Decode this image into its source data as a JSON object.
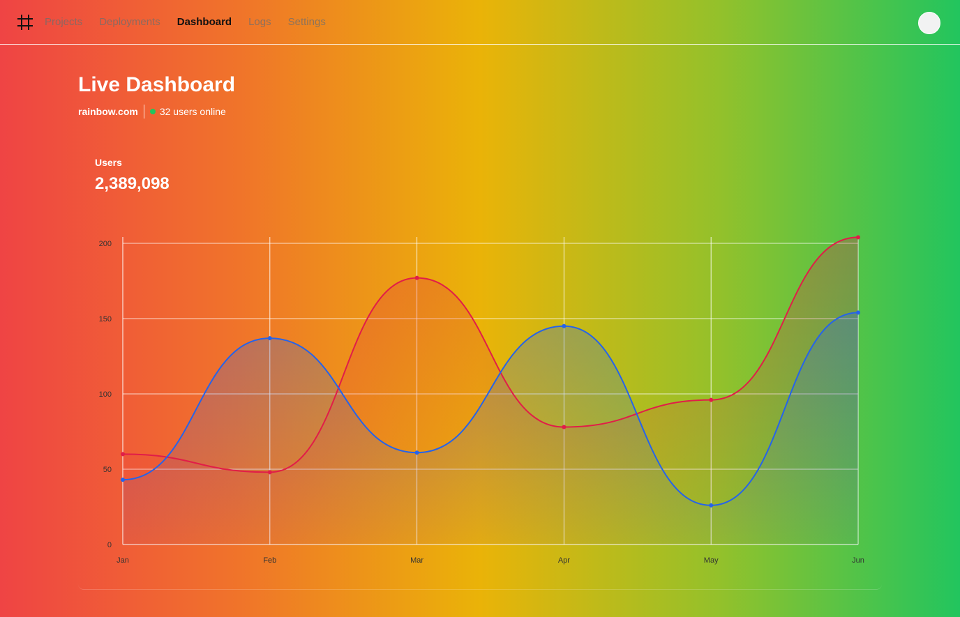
{
  "nav": {
    "items": [
      "Projects",
      "Deployments",
      "Dashboard",
      "Logs",
      "Settings"
    ],
    "active": "Dashboard"
  },
  "header": {
    "title": "Live Dashboard",
    "domain": "rainbow.com",
    "online": "32 users online"
  },
  "stat": {
    "label": "Users",
    "value": "2,389,098"
  },
  "colors": {
    "accent_online": "#22c55e",
    "series_red": "#e11d48",
    "series_blue": "#2563eb"
  },
  "icons": [
    "hash-logo-icon",
    "avatar"
  ],
  "chart_data": {
    "type": "area",
    "categories": [
      "Jan",
      "Feb",
      "Mar",
      "Apr",
      "May",
      "Jun"
    ],
    "ylim": [
      0,
      200
    ],
    "yticks": [
      0,
      50,
      100,
      150,
      200
    ],
    "grid": true,
    "series": [
      {
        "values": [
          60,
          48,
          177,
          78,
          96,
          204
        ],
        "color": "#e11d48"
      },
      {
        "values": [
          43,
          137,
          61,
          145,
          26,
          154
        ],
        "color": "#2563eb"
      }
    ]
  }
}
